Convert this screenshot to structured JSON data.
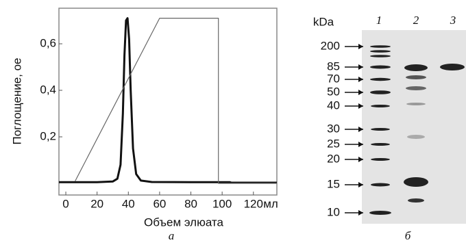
{
  "chart_data": {
    "type": "line",
    "xlabel": "Объем элюата",
    "ylabel": "Поглощение, ое",
    "x_unit": "мл",
    "xlim": [
      -4.4,
      135
    ],
    "ylim": [
      -0.05,
      0.753
    ],
    "xticks": [
      0,
      20,
      40,
      60,
      80,
      100,
      120
    ],
    "yticks": [
      {
        "value": 0.2,
        "label": "0,2"
      },
      {
        "value": 0.4,
        "label": "0,4"
      },
      {
        "value": 0.6,
        "label": "0,6"
      }
    ],
    "series": [
      {
        "color": "#111111",
        "width": 3,
        "x": [
          -4.4,
          20,
          30,
          33,
          35,
          36.5,
          37.5,
          38.5,
          39.5,
          40.5,
          41.5,
          43,
          45,
          48,
          55,
          80,
          105,
          106,
          135
        ],
        "values": [
          0.005,
          0.005,
          0.008,
          0.02,
          0.08,
          0.3,
          0.55,
          0.7,
          0.71,
          0.62,
          0.4,
          0.15,
          0.04,
          0.012,
          0.006,
          0.005,
          0.005,
          0.003,
          0.003
        ]
      },
      {
        "color": "#666666",
        "width": 1.2,
        "x": [
          6,
          60,
          97.6,
          97.6,
          135
        ],
        "values": [
          0.01,
          0.71,
          0.71,
          0.0,
          0.0
        ]
      }
    ],
    "panel_label": "а"
  },
  "gel": {
    "unit": "kDa",
    "lanes": [
      "1",
      "2",
      "3"
    ],
    "markers": [
      "200",
      "85",
      "70",
      "50",
      "40",
      "30",
      "25",
      "20",
      "15",
      "10"
    ],
    "panel_label": "б"
  }
}
